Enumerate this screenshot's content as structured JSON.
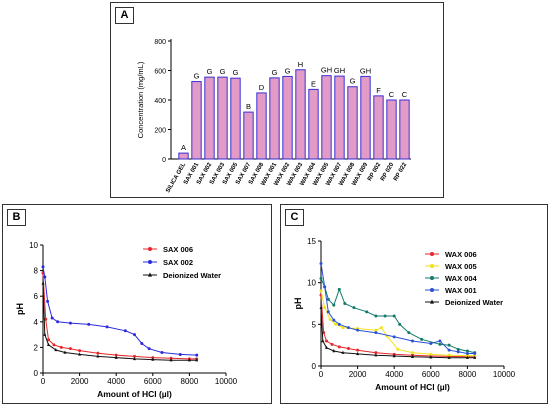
{
  "panels": [
    {
      "label": "A"
    },
    {
      "label": "B"
    },
    {
      "label": "C"
    }
  ],
  "chart_data": [
    {
      "type": "bar",
      "panel": "A",
      "categories": [
        "SILICA GEL",
        "SAX 001",
        "SAX 002",
        "SAX 003",
        "SAX 005",
        "SAX 007",
        "SAX 008",
        "WAX 001",
        "WAX 002",
        "WAX 003",
        "WAX 004",
        "WAX 005",
        "WAX 007",
        "WAX 008",
        "WAX 009",
        "RP 002",
        "RP 020",
        "RP 022"
      ],
      "values": [
        40,
        525,
        555,
        555,
        548,
        318,
        448,
        550,
        560,
        605,
        472,
        565,
        562,
        490,
        560,
        428,
        400,
        400
      ],
      "letters": [
        "A",
        "G",
        "G",
        "G",
        "G",
        "B",
        "D",
        "G",
        "G",
        "H",
        "E",
        "GH",
        "GH",
        "G",
        "GH",
        "F",
        "C",
        "C"
      ],
      "ylabel": "Concentration (mg/mL)",
      "ylim": [
        0,
        800
      ],
      "yticks": [
        0,
        200,
        400,
        600,
        800
      ],
      "colors": {
        "fill": "#e29ac6",
        "stroke": "#3a2fd4"
      }
    },
    {
      "type": "line",
      "panel": "B",
      "xlabel": "Amount of HCl (µl)",
      "ylabel": "pH",
      "xlim": [
        0,
        10000
      ],
      "ylim": [
        0,
        10
      ],
      "xticks": [
        0,
        2000,
        4000,
        6000,
        8000,
        10000
      ],
      "yticks": [
        0,
        2,
        4,
        6,
        8,
        10
      ],
      "legend_position": "top-right",
      "series": [
        {
          "name": "SAX 006",
          "color": "#e8262a",
          "marker": "circle",
          "points": [
            [
              0,
              7.8
            ],
            [
              150,
              4.2
            ],
            [
              300,
              2.6
            ],
            [
              600,
              2.2
            ],
            [
              1000,
              2.0
            ],
            [
              1500,
              1.9
            ],
            [
              2000,
              1.75
            ],
            [
              3000,
              1.55
            ],
            [
              4000,
              1.4
            ],
            [
              5000,
              1.3
            ],
            [
              6000,
              1.2
            ],
            [
              7000,
              1.15
            ],
            [
              8000,
              1.1
            ],
            [
              8400,
              1.1
            ]
          ]
        },
        {
          "name": "SAX 002",
          "color": "#2a2ae0",
          "marker": "circle",
          "points": [
            [
              0,
              8.3
            ],
            [
              100,
              7.5
            ],
            [
              250,
              5.6
            ],
            [
              500,
              4.3
            ],
            [
              800,
              4.0
            ],
            [
              1500,
              3.9
            ],
            [
              2500,
              3.8
            ],
            [
              3500,
              3.6
            ],
            [
              4500,
              3.3
            ],
            [
              5000,
              3.0
            ],
            [
              5400,
              2.3
            ],
            [
              5800,
              1.9
            ],
            [
              6500,
              1.6
            ],
            [
              7500,
              1.45
            ],
            [
              8400,
              1.4
            ]
          ]
        },
        {
          "name": "Deionized Water",
          "color": "#111111",
          "marker": "triangle",
          "points": [
            [
              0,
              7.0
            ],
            [
              100,
              3.0
            ],
            [
              300,
              2.2
            ],
            [
              700,
              1.8
            ],
            [
              1200,
              1.6
            ],
            [
              2000,
              1.45
            ],
            [
              3000,
              1.3
            ],
            [
              4000,
              1.2
            ],
            [
              5000,
              1.1
            ],
            [
              6000,
              1.05
            ],
            [
              7000,
              1.0
            ],
            [
              8000,
              1.0
            ],
            [
              8400,
              1.0
            ]
          ]
        }
      ]
    },
    {
      "type": "line",
      "panel": "C",
      "xlabel": "Amount of HCl (µl)",
      "ylabel": "pH",
      "xlim": [
        0,
        10000
      ],
      "ylim": [
        0,
        15
      ],
      "xticks": [
        0,
        2000,
        4000,
        6000,
        8000,
        10000
      ],
      "yticks": [
        0,
        5,
        10,
        15
      ],
      "legend_position": "top-right",
      "series": [
        {
          "name": "WAX 006",
          "color": "#e8262a",
          "marker": "circle",
          "points": [
            [
              0,
              8.5
            ],
            [
              150,
              4.0
            ],
            [
              300,
              3.0
            ],
            [
              600,
              2.6
            ],
            [
              1000,
              2.3
            ],
            [
              1500,
              2.1
            ],
            [
              2000,
              1.9
            ],
            [
              3000,
              1.6
            ],
            [
              4000,
              1.4
            ],
            [
              5000,
              1.3
            ],
            [
              6000,
              1.2
            ],
            [
              7000,
              1.15
            ],
            [
              8000,
              1.1
            ],
            [
              8400,
              1.1
            ]
          ]
        },
        {
          "name": "WAX 005",
          "color": "#f2e21a",
          "marker": "circle",
          "points": [
            [
              0,
              9.0
            ],
            [
              200,
              7.0
            ],
            [
              500,
              5.6
            ],
            [
              800,
              5.0
            ],
            [
              1200,
              4.6
            ],
            [
              2000,
              4.5
            ],
            [
              3000,
              4.3
            ],
            [
              3300,
              4.6
            ],
            [
              3600,
              3.6
            ],
            [
              4200,
              2.0
            ],
            [
              5000,
              1.6
            ],
            [
              6000,
              1.4
            ],
            [
              7000,
              1.3
            ],
            [
              8000,
              1.25
            ],
            [
              8400,
              1.25
            ]
          ]
        },
        {
          "name": "WAX 004",
          "color": "#127a6a",
          "marker": "circle",
          "points": [
            [
              0,
              10.5
            ],
            [
              200,
              9.5
            ],
            [
              400,
              8.0
            ],
            [
              700,
              7.3
            ],
            [
              1000,
              9.2
            ],
            [
              1300,
              7.5
            ],
            [
              1800,
              7.0
            ],
            [
              2500,
              6.5
            ],
            [
              3000,
              6.0
            ],
            [
              3500,
              6.0
            ],
            [
              4000,
              6.0
            ],
            [
              4300,
              5.0
            ],
            [
              4800,
              4.0
            ],
            [
              5500,
              3.2
            ],
            [
              6500,
              2.6
            ],
            [
              7000,
              2.5
            ],
            [
              7500,
              2.0
            ],
            [
              8000,
              1.8
            ],
            [
              8400,
              1.6
            ]
          ]
        },
        {
          "name": "WAX 001",
          "color": "#2a52d4",
          "marker": "circle",
          "points": [
            [
              0,
              12.3
            ],
            [
              200,
              9.5
            ],
            [
              400,
              6.5
            ],
            [
              700,
              5.5
            ],
            [
              1000,
              5.0
            ],
            [
              1500,
              4.6
            ],
            [
              2000,
              4.3
            ],
            [
              3000,
              4.0
            ],
            [
              4000,
              3.5
            ],
            [
              5000,
              3.0
            ],
            [
              6000,
              2.7
            ],
            [
              6500,
              3.0
            ],
            [
              7000,
              1.9
            ],
            [
              7500,
              1.7
            ],
            [
              8000,
              1.5
            ],
            [
              8400,
              1.5
            ]
          ]
        },
        {
          "name": "Deionized Water",
          "color": "#111111",
          "marker": "triangle",
          "points": [
            [
              0,
              7.0
            ],
            [
              100,
              3.0
            ],
            [
              300,
              2.2
            ],
            [
              700,
              1.8
            ],
            [
              1200,
              1.6
            ],
            [
              2000,
              1.45
            ],
            [
              3000,
              1.3
            ],
            [
              4000,
              1.2
            ],
            [
              5000,
              1.1
            ],
            [
              6000,
              1.05
            ],
            [
              7000,
              1.0
            ],
            [
              8000,
              1.0
            ],
            [
              8400,
              1.0
            ]
          ]
        }
      ]
    }
  ]
}
